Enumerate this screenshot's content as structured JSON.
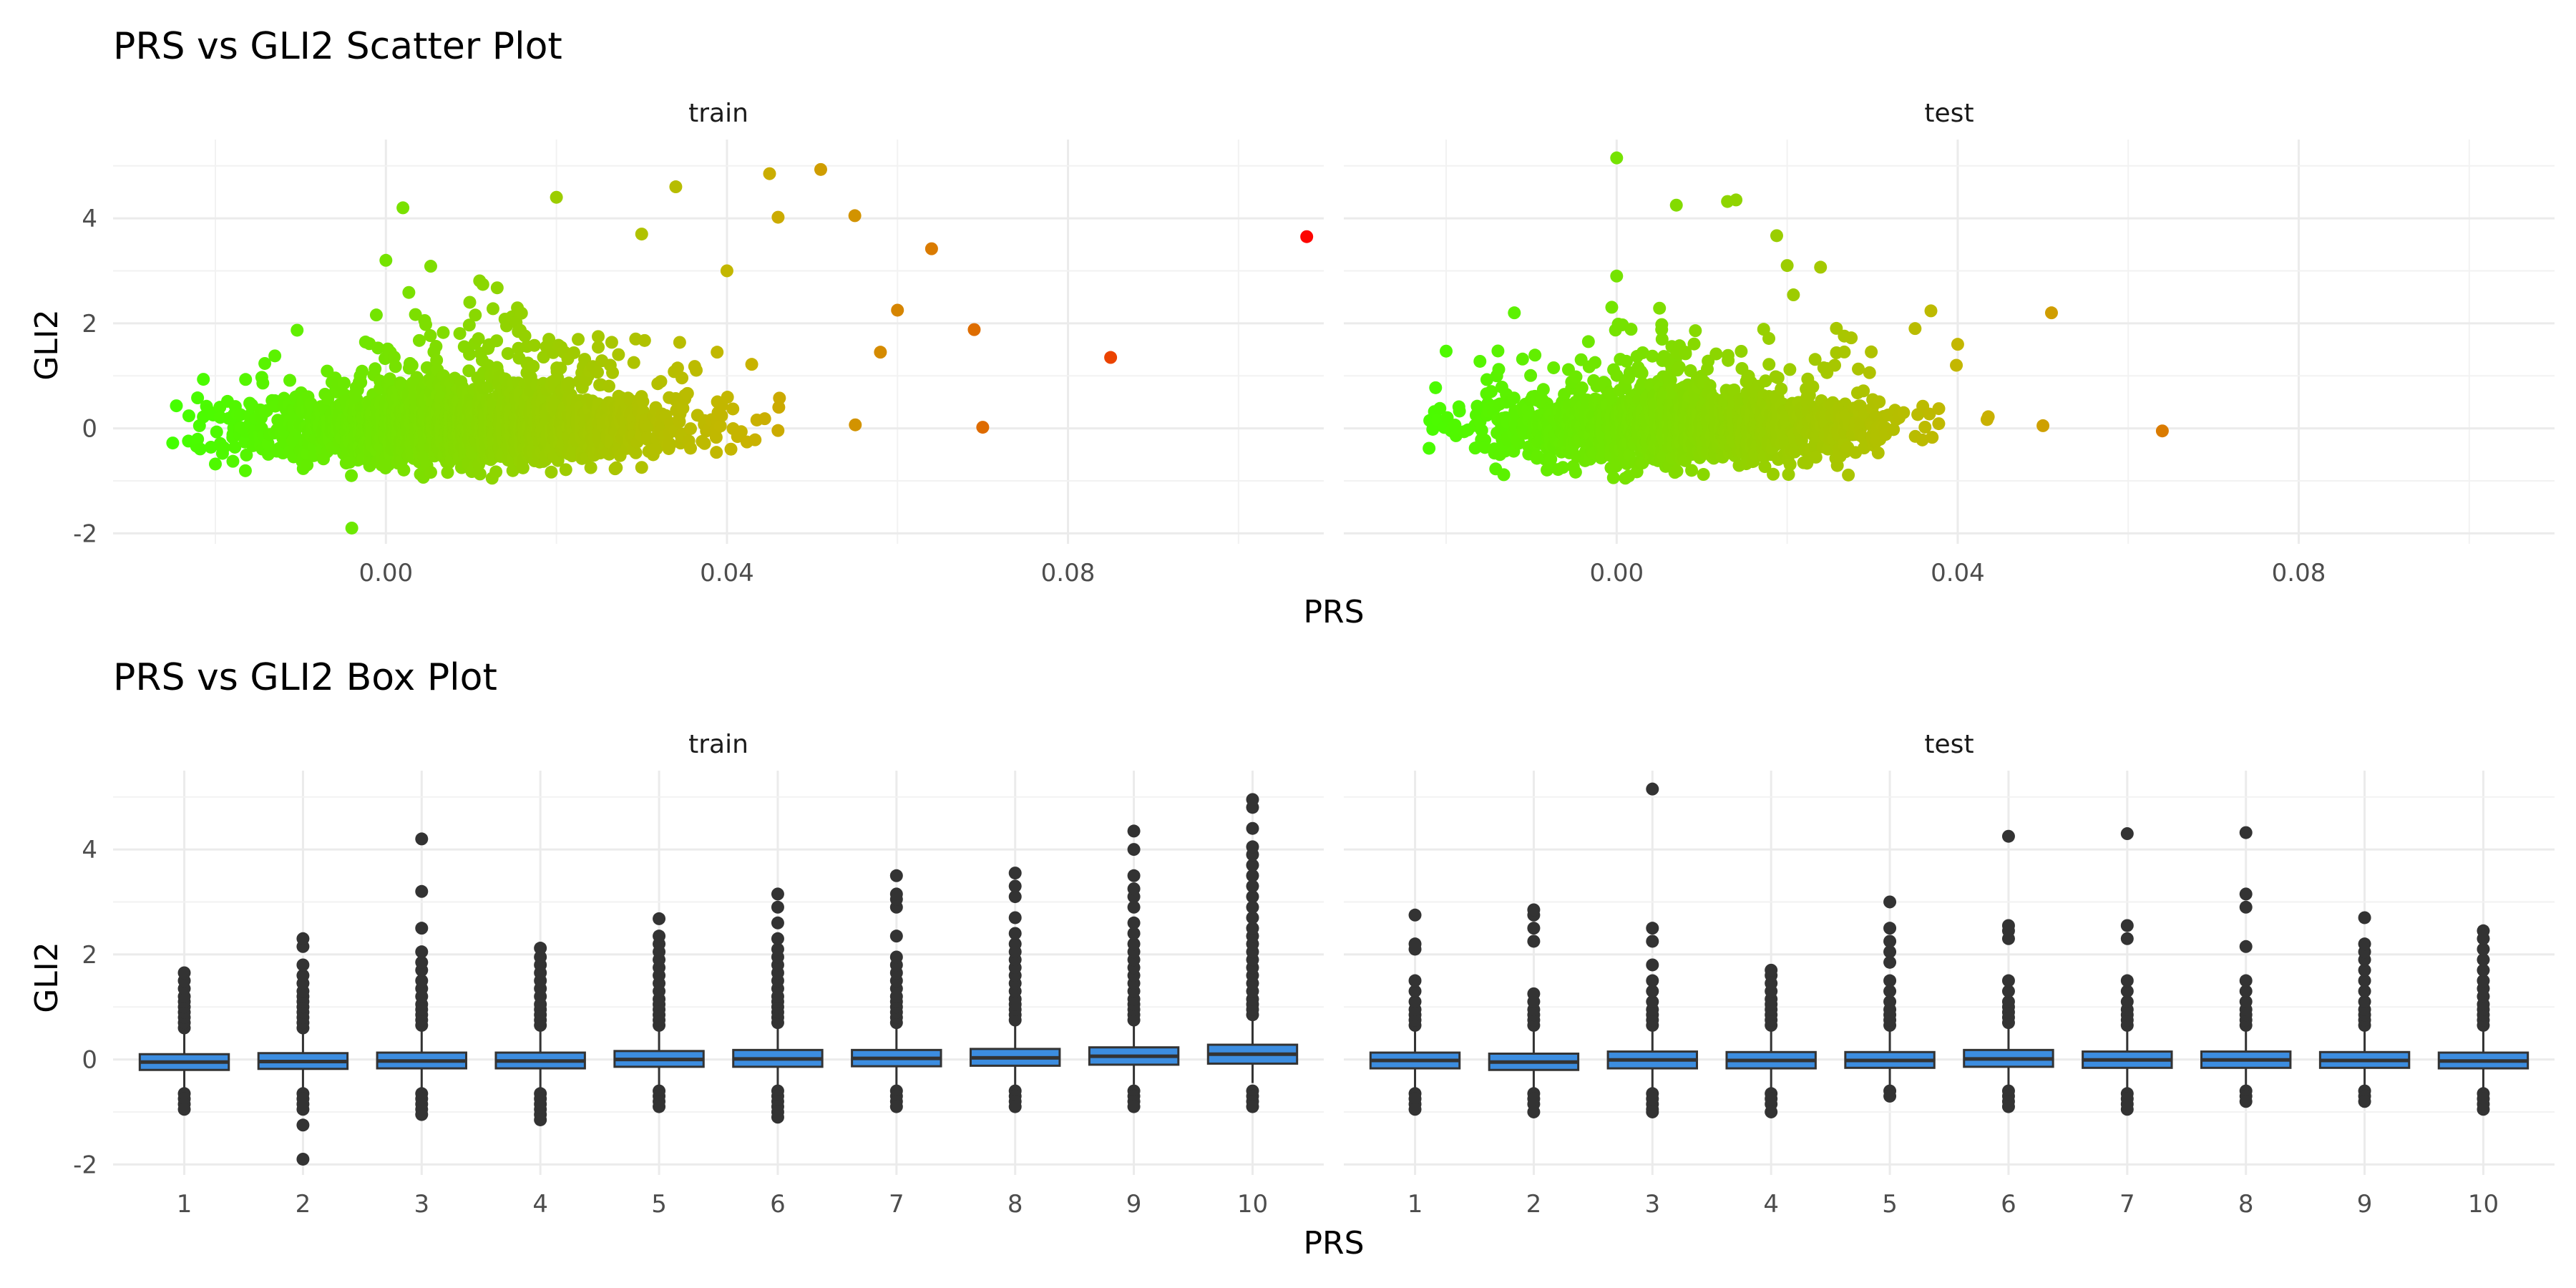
{
  "chart_data": [
    {
      "type": "scatter",
      "title": "PRS vs GLI2 Scatter Plot",
      "xlabel": "PRS",
      "ylabel": "GLI2",
      "facets": [
        "train",
        "test"
      ],
      "xlim": [
        -0.032,
        0.11
      ],
      "ylim": [
        -2.2,
        5.5
      ],
      "x_ticks": [
        0.0,
        0.04,
        0.08
      ],
      "x_tick_labels": [
        "0.00",
        "0.04",
        "0.08"
      ],
      "y_ticks": [
        -2,
        0,
        2,
        4
      ],
      "y_tick_labels": [
        "-2",
        "0",
        "2",
        "4"
      ],
      "grid": true,
      "color_scale": {
        "low": "#44ff00",
        "mid": "#c8b400",
        "high": "#ff0000",
        "variable": "PRS"
      },
      "series": [
        {
          "facet": "train",
          "cloud": {
            "n": 2600,
            "x_center": 0.01,
            "x_sd": 0.012,
            "x_min": -0.025,
            "x_max": 0.07,
            "y_sd": 0.3
          },
          "notable_points": [
            [
              0.108,
              3.65
            ],
            [
              0.085,
              1.35
            ],
            [
              0.069,
              1.88
            ],
            [
              0.07,
              0.02
            ],
            [
              0.064,
              3.42
            ],
            [
              0.051,
              4.93
            ],
            [
              0.045,
              4.85
            ],
            [
              0.055,
              4.05
            ],
            [
              0.034,
              4.6
            ],
            [
              0.02,
              4.4
            ],
            [
              0.002,
              4.2
            ],
            [
              0.0,
              3.2
            ],
            [
              -0.004,
              -1.9
            ],
            [
              0.046,
              4.02
            ],
            [
              0.06,
              2.25
            ],
            [
              -0.025,
              -0.28
            ],
            [
              -0.02,
              -0.68
            ],
            [
              0.04,
              3.0
            ],
            [
              0.03,
              3.7
            ],
            [
              0.058,
              1.45
            ]
          ]
        },
        {
          "facet": "test",
          "cloud": {
            "n": 1700,
            "x_center": 0.008,
            "x_sd": 0.012,
            "x_min": -0.022,
            "x_max": 0.064,
            "y_sd": 0.3
          },
          "notable_points": [
            [
              0.0,
              5.15
            ],
            [
              0.013,
              4.32
            ],
            [
              0.007,
              4.25
            ],
            [
              0.014,
              4.35
            ],
            [
              0.051,
              2.2
            ],
            [
              -0.02,
              1.47
            ],
            [
              -0.022,
              -0.38
            ],
            [
              0.064,
              -0.05
            ],
            [
              0.05,
              0.05
            ],
            [
              0.02,
              3.1
            ],
            [
              0.04,
              1.6
            ],
            [
              0.0,
              2.9
            ],
            [
              0.035,
              1.9
            ],
            [
              -0.012,
              2.2
            ]
          ]
        }
      ]
    },
    {
      "type": "box",
      "title": "PRS vs GLI2 Box Plot",
      "xlabel": "PRS",
      "ylabel": "GLI2",
      "facets": [
        "train",
        "test"
      ],
      "categories": [
        "1",
        "2",
        "3",
        "4",
        "5",
        "6",
        "7",
        "8",
        "9",
        "10"
      ],
      "ylim": [
        -2.2,
        5.5
      ],
      "y_ticks": [
        -2,
        0,
        2,
        4
      ],
      "y_tick_labels": [
        "-2",
        "0",
        "2",
        "4"
      ],
      "grid": true,
      "box_fill": "#3c8de0",
      "box_outline": "#333333",
      "series": [
        {
          "facet": "train",
          "boxes": [
            {
              "q1": -0.2,
              "median": -0.05,
              "q3": 0.1,
              "whisker_low": -0.55,
              "whisker_high": 0.55,
              "outliers_high": [
                0.6,
                0.7,
                0.8,
                0.9,
                1.0,
                1.1,
                1.2,
                1.35,
                1.5,
                1.65
              ],
              "outliers_low": [
                -0.65,
                -0.75,
                -0.85,
                -0.95
              ]
            },
            {
              "q1": -0.18,
              "median": -0.04,
              "q3": 0.12,
              "whisker_low": -0.55,
              "whisker_high": 0.55,
              "outliers_high": [
                0.6,
                0.7,
                0.8,
                0.9,
                1.0,
                1.1,
                1.2,
                1.3,
                1.45,
                1.6,
                1.8,
                2.15,
                2.3
              ],
              "outliers_low": [
                -0.65,
                -0.75,
                -0.85,
                -0.95,
                -1.25,
                -1.9
              ]
            },
            {
              "q1": -0.17,
              "median": -0.03,
              "q3": 0.13,
              "whisker_low": -0.55,
              "whisker_high": 0.58,
              "outliers_high": [
                0.65,
                0.75,
                0.85,
                0.95,
                1.05,
                1.2,
                1.35,
                1.5,
                1.7,
                1.85,
                2.05,
                2.5,
                3.2,
                4.2
              ],
              "outliers_low": [
                -0.65,
                -0.75,
                -0.85,
                -0.95,
                -1.05
              ]
            },
            {
              "q1": -0.17,
              "median": -0.03,
              "q3": 0.13,
              "whisker_low": -0.55,
              "whisker_high": 0.58,
              "outliers_high": [
                0.65,
                0.75,
                0.85,
                0.95,
                1.05,
                1.2,
                1.35,
                1.5,
                1.65,
                1.8,
                1.95,
                2.12
              ],
              "outliers_low": [
                -0.65,
                -0.75,
                -0.85,
                -0.95,
                -1.05,
                -1.15
              ]
            },
            {
              "q1": -0.14,
              "median": 0.0,
              "q3": 0.16,
              "whisker_low": -0.52,
              "whisker_high": 0.6,
              "outliers_high": [
                0.65,
                0.75,
                0.85,
                0.95,
                1.05,
                1.15,
                1.3,
                1.45,
                1.6,
                1.75,
                1.9,
                2.05,
                2.2,
                2.35,
                2.68
              ],
              "outliers_low": [
                -0.6,
                -0.7,
                -0.8,
                -0.9
              ]
            },
            {
              "q1": -0.14,
              "median": 0.01,
              "q3": 0.18,
              "whisker_low": -0.5,
              "whisker_high": 0.63,
              "outliers_high": [
                0.7,
                0.8,
                0.9,
                1.0,
                1.1,
                1.2,
                1.35,
                1.5,
                1.65,
                1.8,
                1.95,
                2.1,
                2.3,
                2.6,
                2.9,
                3.15
              ],
              "outliers_low": [
                -0.6,
                -0.7,
                -0.8,
                -0.9,
                -1.0,
                -1.1
              ]
            },
            {
              "q1": -0.13,
              "median": 0.02,
              "q3": 0.18,
              "whisker_low": -0.5,
              "whisker_high": 0.65,
              "outliers_high": [
                0.7,
                0.8,
                0.9,
                1.0,
                1.1,
                1.2,
                1.35,
                1.5,
                1.65,
                1.8,
                1.95,
                2.35,
                2.9,
                3.05,
                3.15,
                3.5
              ],
              "outliers_low": [
                -0.6,
                -0.7,
                -0.8,
                -0.9
              ]
            },
            {
              "q1": -0.12,
              "median": 0.03,
              "q3": 0.2,
              "whisker_low": -0.5,
              "whisker_high": 0.68,
              "outliers_high": [
                0.75,
                0.85,
                0.95,
                1.05,
                1.15,
                1.3,
                1.45,
                1.6,
                1.75,
                1.9,
                2.05,
                2.2,
                2.4,
                2.7,
                3.1,
                3.3,
                3.55
              ],
              "outliers_low": [
                -0.6,
                -0.7,
                -0.8,
                -0.9
              ]
            },
            {
              "q1": -0.1,
              "median": 0.06,
              "q3": 0.23,
              "whisker_low": -0.48,
              "whisker_high": 0.7,
              "outliers_high": [
                0.75,
                0.85,
                0.95,
                1.05,
                1.15,
                1.3,
                1.45,
                1.6,
                1.75,
                1.9,
                2.05,
                2.2,
                2.4,
                2.6,
                2.9,
                3.1,
                3.25,
                3.5,
                4.0,
                4.35
              ],
              "outliers_low": [
                -0.6,
                -0.7,
                -0.8,
                -0.9
              ]
            },
            {
              "q1": -0.08,
              "median": 0.1,
              "q3": 0.28,
              "whisker_low": -0.45,
              "whisker_high": 0.8,
              "outliers_high": [
                0.85,
                0.95,
                1.05,
                1.15,
                1.3,
                1.45,
                1.6,
                1.75,
                1.9,
                2.05,
                2.2,
                2.35,
                2.5,
                2.7,
                2.9,
                3.1,
                3.3,
                3.5,
                3.7,
                3.9,
                4.05,
                4.4,
                4.8,
                4.95
              ],
              "outliers_low": [
                -0.6,
                -0.7,
                -0.8,
                -0.9
              ]
            }
          ]
        },
        {
          "facet": "test",
          "boxes": [
            {
              "q1": -0.17,
              "median": -0.02,
              "q3": 0.13,
              "whisker_low": -0.55,
              "whisker_high": 0.58,
              "outliers_high": [
                0.65,
                0.75,
                0.85,
                0.95,
                1.1,
                1.3,
                1.5,
                2.1,
                2.2,
                2.75
              ],
              "outliers_low": [
                -0.65,
                -0.75,
                -0.85,
                -0.95
              ]
            },
            {
              "q1": -0.2,
              "median": -0.05,
              "q3": 0.11,
              "whisker_low": -0.58,
              "whisker_high": 0.56,
              "outliers_high": [
                0.65,
                0.75,
                0.85,
                0.95,
                1.1,
                1.25,
                2.25,
                2.5,
                2.75,
                2.85
              ],
              "outliers_low": [
                -0.65,
                -0.75,
                -0.85,
                -1.0
              ]
            },
            {
              "q1": -0.17,
              "median": -0.01,
              "q3": 0.15,
              "whisker_low": -0.55,
              "whisker_high": 0.6,
              "outliers_high": [
                0.65,
                0.75,
                0.85,
                0.95,
                1.1,
                1.3,
                1.5,
                1.8,
                2.25,
                2.5,
                5.15
              ],
              "outliers_low": [
                -0.65,
                -0.75,
                -0.85,
                -0.95,
                -1.0
              ]
            },
            {
              "q1": -0.17,
              "median": -0.02,
              "q3": 0.14,
              "whisker_low": -0.55,
              "whisker_high": 0.6,
              "outliers_high": [
                0.65,
                0.75,
                0.85,
                0.95,
                1.05,
                1.15,
                1.3,
                1.45,
                1.6,
                1.7
              ],
              "outliers_low": [
                -0.65,
                -0.75,
                -0.85,
                -1.0
              ]
            },
            {
              "q1": -0.16,
              "median": -0.02,
              "q3": 0.14,
              "whisker_low": -0.55,
              "whisker_high": 0.6,
              "outliers_high": [
                0.65,
                0.75,
                0.85,
                0.95,
                1.1,
                1.3,
                1.5,
                1.85,
                2.05,
                2.25,
                2.5,
                3.0
              ],
              "outliers_low": [
                -0.6,
                -0.7
              ]
            },
            {
              "q1": -0.14,
              "median": 0.01,
              "q3": 0.18,
              "whisker_low": -0.52,
              "whisker_high": 0.63,
              "outliers_high": [
                0.7,
                0.8,
                0.9,
                1.0,
                1.1,
                1.3,
                1.5,
                2.3,
                2.45,
                2.55,
                4.25
              ],
              "outliers_low": [
                -0.6,
                -0.7,
                -0.8,
                -0.9
              ]
            },
            {
              "q1": -0.16,
              "median": -0.01,
              "q3": 0.15,
              "whisker_low": -0.55,
              "whisker_high": 0.6,
              "outliers_high": [
                0.65,
                0.75,
                0.85,
                0.95,
                1.1,
                1.3,
                1.5,
                2.3,
                2.55,
                4.3
              ],
              "outliers_low": [
                -0.65,
                -0.75,
                -0.85,
                -0.95
              ]
            },
            {
              "q1": -0.16,
              "median": -0.01,
              "q3": 0.15,
              "whisker_low": -0.55,
              "whisker_high": 0.6,
              "outliers_high": [
                0.65,
                0.75,
                0.85,
                0.95,
                1.1,
                1.3,
                1.5,
                2.15,
                2.9,
                3.15,
                4.32
              ],
              "outliers_low": [
                -0.6,
                -0.7,
                -0.8
              ]
            },
            {
              "q1": -0.16,
              "median": -0.02,
              "q3": 0.14,
              "whisker_low": -0.55,
              "whisker_high": 0.58,
              "outliers_high": [
                0.65,
                0.75,
                0.85,
                0.95,
                1.1,
                1.3,
                1.5,
                1.7,
                1.9,
                2.05,
                2.2,
                2.7
              ],
              "outliers_low": [
                -0.6,
                -0.7,
                -0.8
              ]
            },
            {
              "q1": -0.17,
              "median": -0.03,
              "q3": 0.13,
              "whisker_low": -0.55,
              "whisker_high": 0.58,
              "outliers_high": [
                0.65,
                0.75,
                0.85,
                0.95,
                1.05,
                1.2,
                1.35,
                1.5,
                1.7,
                1.9,
                2.1,
                2.3,
                2.45
              ],
              "outliers_low": [
                -0.65,
                -0.75,
                -0.85,
                -0.95
              ]
            }
          ]
        }
      ]
    }
  ]
}
